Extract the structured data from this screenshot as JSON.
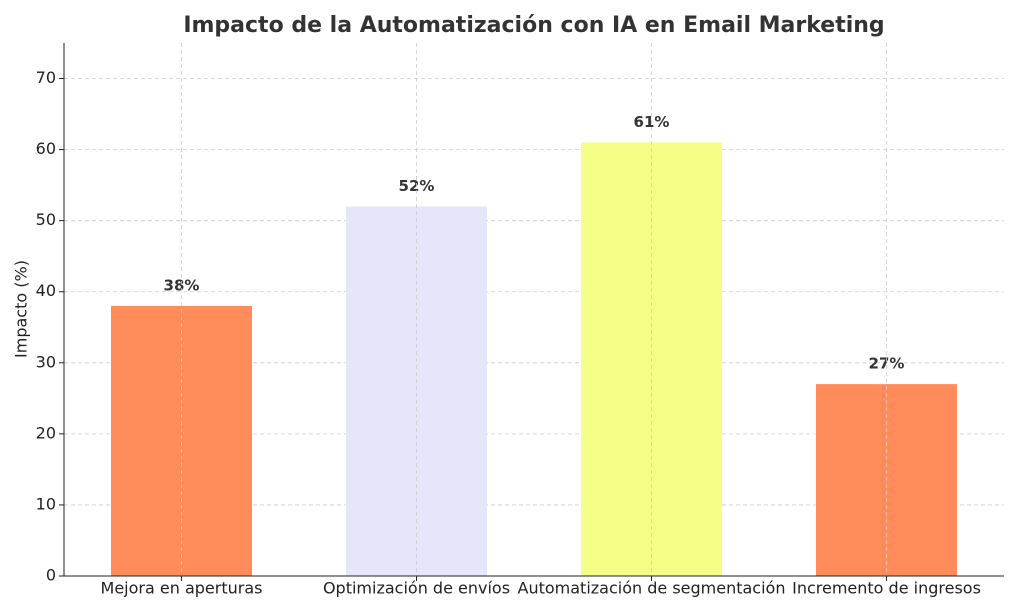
{
  "chart_data": {
    "type": "bar",
    "title": "Impacto de la Automatización con IA en Email Marketing",
    "y_label": "Impacto (%)",
    "categories": [
      "Mejora en aperturas",
      "Optimización de envíos",
      "Automatización de segmentación",
      "Incremento de ingresos"
    ],
    "values": [
      38,
      52,
      61,
      27
    ],
    "value_labels": [
      "38%",
      "52%",
      "61%",
      "27%"
    ],
    "colors": [
      "#ff8c5a",
      "#e6e6fa",
      "#f5ff87",
      "#ff8c5a"
    ],
    "ylim": [
      0,
      75
    ],
    "yticks": [
      0,
      10,
      20,
      30,
      40,
      50,
      60,
      70
    ],
    "grid": true
  }
}
